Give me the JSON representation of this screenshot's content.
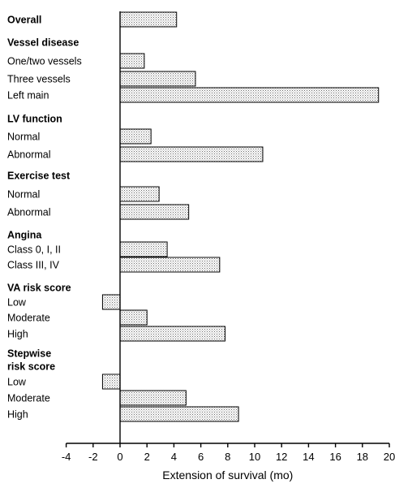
{
  "chart_data": {
    "type": "bar",
    "orientation": "horizontal",
    "xlabel": "Extension of survival (mo)",
    "xlim": [
      -4,
      20
    ],
    "xticks": [
      -4,
      -2,
      0,
      2,
      4,
      6,
      8,
      10,
      12,
      14,
      16,
      18,
      20
    ],
    "groups": [
      {
        "title": "Overall",
        "bars": [
          {
            "label": "",
            "value": 4.2
          }
        ]
      },
      {
        "title": "Vessel disease",
        "bars": [
          {
            "label": "One/two vessels",
            "value": 1.8
          },
          {
            "label": "Three vessels",
            "value": 5.6
          },
          {
            "label": "Left main",
            "value": 19.2
          }
        ]
      },
      {
        "title": "LV function",
        "bars": [
          {
            "label": "Normal",
            "value": 2.3
          },
          {
            "label": "Abnormal",
            "value": 10.6
          }
        ]
      },
      {
        "title": "Exercise test",
        "bars": [
          {
            "label": "Normal",
            "value": 2.9
          },
          {
            "label": "Abnormal",
            "value": 5.1
          }
        ]
      },
      {
        "title": "Angina",
        "bars": [
          {
            "label": "Class 0, I, II",
            "value": 3.5
          },
          {
            "label": "Class III, IV",
            "value": 7.4
          }
        ]
      },
      {
        "title": "VA risk score",
        "bars": [
          {
            "label": "Low",
            "value": -1.3
          },
          {
            "label": "Moderate",
            "value": 2.0
          },
          {
            "label": "High",
            "value": 7.8
          }
        ]
      },
      {
        "title": "Stepwise risk score",
        "title_lines": [
          "Stepwise",
          "risk score"
        ],
        "bars": [
          {
            "label": "Low",
            "value": -1.3
          },
          {
            "label": "Moderate",
            "value": 4.9
          },
          {
            "label": "High",
            "value": 8.8
          }
        ]
      }
    ]
  }
}
